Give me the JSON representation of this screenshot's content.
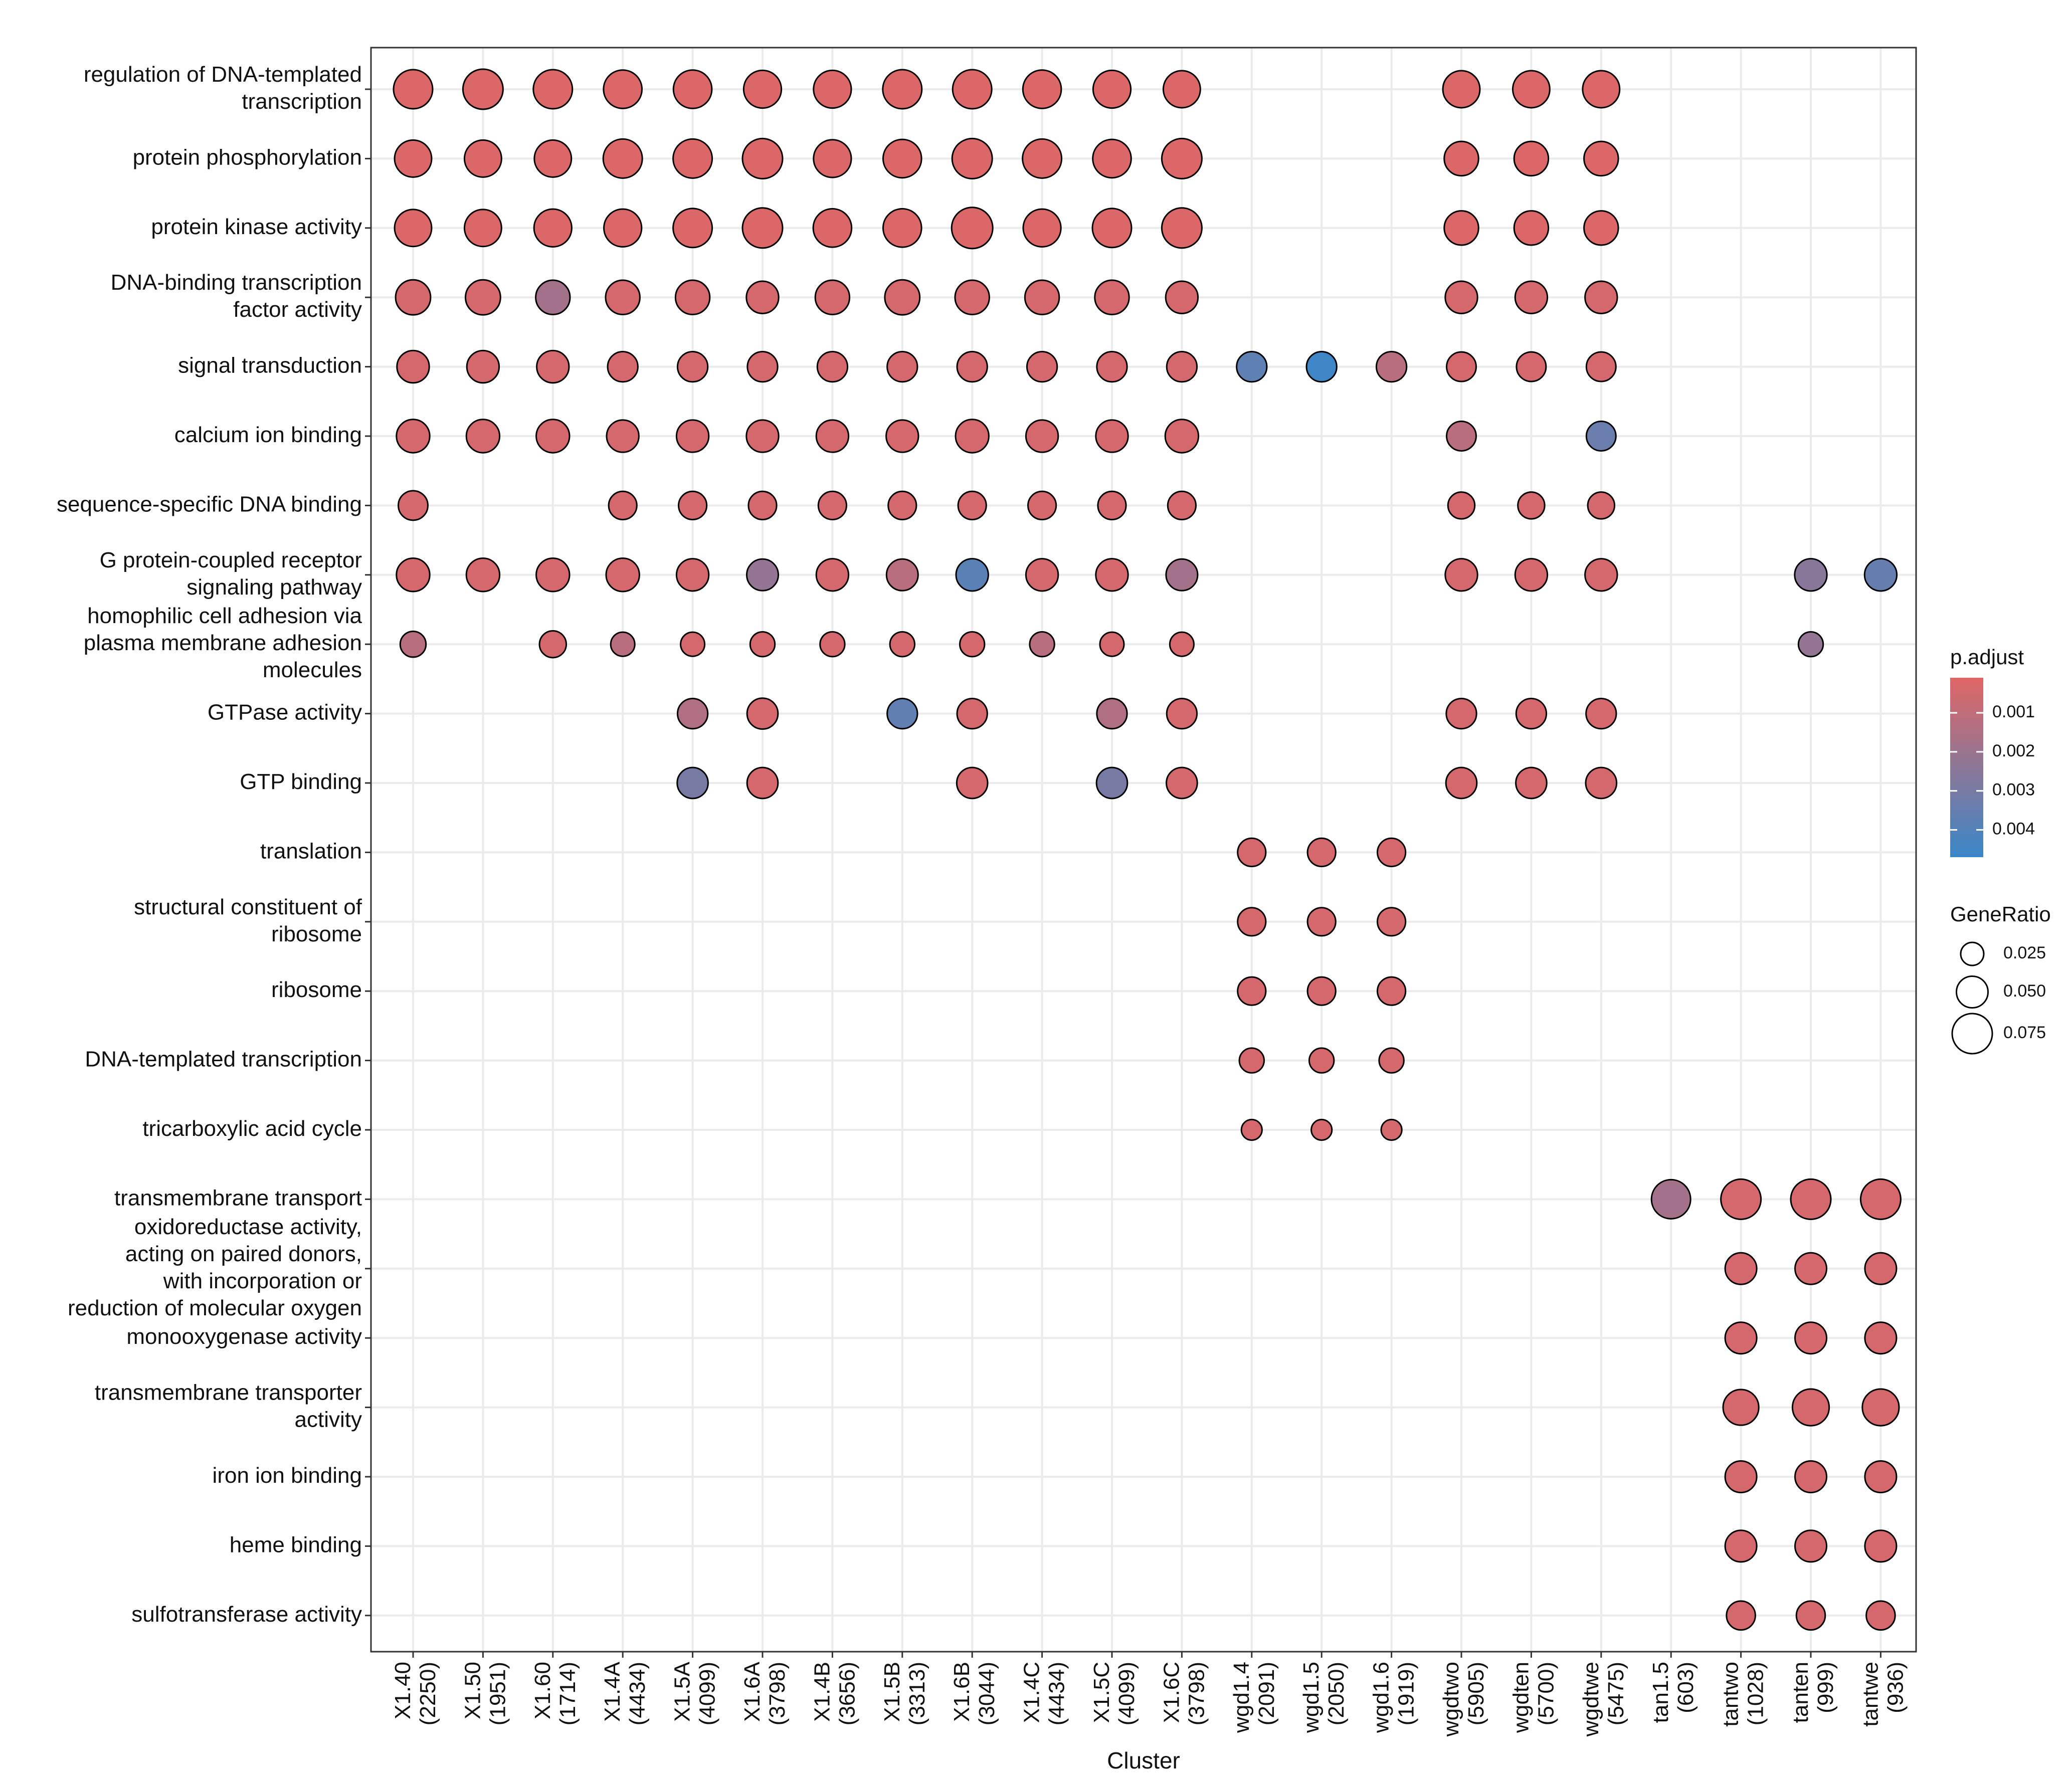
{
  "chart_data": {
    "type": "scatter",
    "xlabel": "Cluster",
    "ylabel": "",
    "x_categories": [
      [
        "X1.40",
        "(2250)"
      ],
      [
        "X1.50",
        "(1951)"
      ],
      [
        "X1.60",
        "(1714)"
      ],
      [
        "X1.4A",
        "(4434)"
      ],
      [
        "X1.5A",
        "(4099)"
      ],
      [
        "X1.6A",
        "(3798)"
      ],
      [
        "X1.4B",
        "(3656)"
      ],
      [
        "X1.5B",
        "(3313)"
      ],
      [
        "X1.6B",
        "(3044)"
      ],
      [
        "X1.4C",
        "(4434)"
      ],
      [
        "X1.5C",
        "(4099)"
      ],
      [
        "X1.6C",
        "(3798)"
      ],
      [
        "wgd1.4",
        "(2091)"
      ],
      [
        "wgd1.5",
        "(2050)"
      ],
      [
        "wgd1.6",
        "(1919)"
      ],
      [
        "wgdtwo",
        "(5905)"
      ],
      [
        "wgdten",
        "(5700)"
      ],
      [
        "wgdtwe",
        "(5475)"
      ],
      [
        "tan1.5",
        "(603)"
      ],
      [
        "tantwo",
        "(1028)"
      ],
      [
        "tanten",
        "(999)"
      ],
      [
        "tantwe",
        "(936)"
      ]
    ],
    "y_categories": [
      [
        "regulation of DNA-templated",
        "transcription"
      ],
      [
        "protein phosphorylation"
      ],
      [
        "protein kinase activity"
      ],
      [
        "DNA-binding transcription",
        "factor activity"
      ],
      [
        "signal transduction"
      ],
      [
        "calcium ion binding"
      ],
      [
        "sequence-specific DNA binding"
      ],
      [
        "G protein-coupled receptor",
        "signaling pathway"
      ],
      [
        "homophilic cell adhesion via",
        "plasma membrane adhesion",
        "molecules"
      ],
      [
        "GTPase activity"
      ],
      [
        "GTP binding"
      ],
      [
        "translation"
      ],
      [
        "structural constituent of",
        "ribosome"
      ],
      [
        "ribosome"
      ],
      [
        "DNA-templated transcription"
      ],
      [
        "tricarboxylic acid cycle"
      ],
      [
        "transmembrane transport"
      ],
      [
        "oxidoreductase activity,",
        "acting on paired donors,",
        "with incorporation or",
        "reduction of molecular oxygen"
      ],
      [
        "monooxygenase activity"
      ],
      [
        "transmembrane transporter",
        "activity"
      ],
      [
        "iron ion binding"
      ],
      [
        "heme binding"
      ],
      [
        "sulfotransferase activity"
      ]
    ],
    "size_legend": {
      "title": "GeneRatio",
      "breaks": [
        0.025,
        0.05,
        0.075
      ],
      "labels": [
        "0.025",
        "0.050",
        "0.075"
      ]
    },
    "color_legend": {
      "title": "p.adjust",
      "labels": [
        "0.001",
        "0.002",
        "0.003",
        "0.004"
      ],
      "values": [
        0.001,
        0.002,
        0.003,
        0.004
      ],
      "range": [
        0.0001,
        0.0047
      ],
      "low_color": "#e06666",
      "high_color": "#3a87c8"
    },
    "grid": true,
    "legend_placement": "right",
    "point_fields": [
      "x",
      "y",
      "gene_ratio",
      "p_adjust"
    ],
    "points": [
      [
        0,
        0,
        0.072,
        0.0002
      ],
      [
        1,
        0,
        0.075,
        0.0002
      ],
      [
        2,
        0,
        0.072,
        0.0002
      ],
      [
        3,
        0,
        0.07,
        0.0002
      ],
      [
        4,
        0,
        0.07,
        0.0002
      ],
      [
        5,
        0,
        0.068,
        0.0002
      ],
      [
        6,
        0,
        0.068,
        0.0002
      ],
      [
        7,
        0,
        0.072,
        0.0002
      ],
      [
        8,
        0,
        0.072,
        0.0002
      ],
      [
        9,
        0,
        0.07,
        0.0002
      ],
      [
        10,
        0,
        0.068,
        0.0002
      ],
      [
        11,
        0,
        0.066,
        0.0002
      ],
      [
        15,
        0,
        0.066,
        0.0002
      ],
      [
        16,
        0,
        0.066,
        0.0002
      ],
      [
        17,
        0,
        0.066,
        0.0002
      ],
      [
        0,
        1,
        0.066,
        0.0002
      ],
      [
        1,
        1,
        0.066,
        0.0002
      ],
      [
        2,
        1,
        0.066,
        0.0002
      ],
      [
        3,
        1,
        0.072,
        0.0002
      ],
      [
        4,
        1,
        0.072,
        0.0002
      ],
      [
        5,
        1,
        0.075,
        0.0002
      ],
      [
        6,
        1,
        0.068,
        0.0002
      ],
      [
        7,
        1,
        0.07,
        0.0002
      ],
      [
        8,
        1,
        0.075,
        0.0002
      ],
      [
        9,
        1,
        0.072,
        0.0002
      ],
      [
        10,
        1,
        0.07,
        0.0002
      ],
      [
        11,
        1,
        0.075,
        0.0002
      ],
      [
        15,
        1,
        0.058,
        0.0002
      ],
      [
        16,
        1,
        0.058,
        0.0002
      ],
      [
        17,
        1,
        0.058,
        0.0002
      ],
      [
        0,
        2,
        0.066,
        0.0002
      ],
      [
        1,
        2,
        0.066,
        0.0002
      ],
      [
        2,
        2,
        0.068,
        0.0002
      ],
      [
        3,
        2,
        0.068,
        0.0002
      ],
      [
        4,
        2,
        0.072,
        0.0002
      ],
      [
        5,
        2,
        0.075,
        0.0002
      ],
      [
        6,
        2,
        0.07,
        0.0002
      ],
      [
        7,
        2,
        0.07,
        0.0002
      ],
      [
        8,
        2,
        0.078,
        0.0002
      ],
      [
        9,
        2,
        0.068,
        0.0002
      ],
      [
        10,
        2,
        0.072,
        0.0002
      ],
      [
        11,
        2,
        0.075,
        0.0002
      ],
      [
        15,
        2,
        0.058,
        0.0002
      ],
      [
        16,
        2,
        0.058,
        0.0002
      ],
      [
        17,
        2,
        0.058,
        0.0002
      ],
      [
        0,
        3,
        0.06,
        0.0004
      ],
      [
        1,
        3,
        0.06,
        0.0004
      ],
      [
        2,
        3,
        0.058,
        0.0018
      ],
      [
        3,
        3,
        0.058,
        0.0004
      ],
      [
        4,
        3,
        0.058,
        0.0004
      ],
      [
        5,
        3,
        0.052,
        0.0004
      ],
      [
        6,
        3,
        0.058,
        0.0004
      ],
      [
        7,
        3,
        0.06,
        0.0004
      ],
      [
        8,
        3,
        0.058,
        0.0004
      ],
      [
        9,
        3,
        0.058,
        0.0004
      ],
      [
        10,
        3,
        0.058,
        0.0004
      ],
      [
        11,
        3,
        0.052,
        0.0004
      ],
      [
        15,
        3,
        0.052,
        0.0004
      ],
      [
        16,
        3,
        0.052,
        0.0004
      ],
      [
        17,
        3,
        0.052,
        0.0004
      ],
      [
        0,
        4,
        0.052,
        0.0004
      ],
      [
        1,
        4,
        0.052,
        0.0004
      ],
      [
        2,
        4,
        0.052,
        0.0004
      ],
      [
        3,
        4,
        0.046,
        0.0004
      ],
      [
        4,
        4,
        0.046,
        0.0004
      ],
      [
        5,
        4,
        0.046,
        0.0004
      ],
      [
        6,
        4,
        0.046,
        0.0004
      ],
      [
        7,
        4,
        0.046,
        0.0004
      ],
      [
        8,
        4,
        0.046,
        0.0004
      ],
      [
        9,
        4,
        0.046,
        0.0004
      ],
      [
        10,
        4,
        0.046,
        0.0004
      ],
      [
        11,
        4,
        0.046,
        0.0004
      ],
      [
        12,
        4,
        0.046,
        0.0037
      ],
      [
        13,
        4,
        0.046,
        0.0046
      ],
      [
        14,
        4,
        0.046,
        0.0012
      ],
      [
        15,
        4,
        0.044,
        0.0004
      ],
      [
        16,
        4,
        0.044,
        0.0004
      ],
      [
        17,
        4,
        0.044,
        0.0004
      ],
      [
        0,
        5,
        0.055,
        0.0004
      ],
      [
        1,
        5,
        0.055,
        0.0004
      ],
      [
        2,
        5,
        0.055,
        0.0004
      ],
      [
        3,
        5,
        0.052,
        0.0004
      ],
      [
        4,
        5,
        0.052,
        0.0004
      ],
      [
        5,
        5,
        0.052,
        0.0004
      ],
      [
        6,
        5,
        0.052,
        0.0004
      ],
      [
        7,
        5,
        0.052,
        0.0004
      ],
      [
        8,
        5,
        0.055,
        0.0004
      ],
      [
        9,
        5,
        0.052,
        0.0004
      ],
      [
        10,
        5,
        0.052,
        0.0004
      ],
      [
        11,
        5,
        0.055,
        0.0004
      ],
      [
        15,
        5,
        0.044,
        0.0012
      ],
      [
        17,
        5,
        0.044,
        0.0034
      ],
      [
        0,
        6,
        0.044,
        0.0004
      ],
      [
        3,
        6,
        0.04,
        0.0004
      ],
      [
        4,
        6,
        0.04,
        0.0004
      ],
      [
        5,
        6,
        0.04,
        0.0004
      ],
      [
        6,
        6,
        0.04,
        0.0004
      ],
      [
        7,
        6,
        0.04,
        0.0004
      ],
      [
        8,
        6,
        0.04,
        0.0004
      ],
      [
        9,
        6,
        0.04,
        0.0004
      ],
      [
        10,
        6,
        0.04,
        0.0004
      ],
      [
        11,
        6,
        0.04,
        0.0004
      ],
      [
        15,
        6,
        0.036,
        0.0004
      ],
      [
        16,
        6,
        0.036,
        0.0004
      ],
      [
        17,
        6,
        0.036,
        0.0004
      ],
      [
        0,
        7,
        0.055,
        0.0004
      ],
      [
        1,
        7,
        0.055,
        0.0004
      ],
      [
        2,
        7,
        0.055,
        0.0004
      ],
      [
        3,
        7,
        0.055,
        0.0004
      ],
      [
        4,
        7,
        0.052,
        0.0004
      ],
      [
        5,
        7,
        0.05,
        0.0022
      ],
      [
        6,
        7,
        0.052,
        0.0004
      ],
      [
        7,
        7,
        0.05,
        0.0012
      ],
      [
        8,
        7,
        0.052,
        0.0038
      ],
      [
        9,
        7,
        0.052,
        0.0004
      ],
      [
        10,
        7,
        0.052,
        0.0004
      ],
      [
        11,
        7,
        0.05,
        0.0018
      ],
      [
        15,
        7,
        0.052,
        0.0004
      ],
      [
        16,
        7,
        0.052,
        0.0004
      ],
      [
        17,
        7,
        0.052,
        0.0004
      ],
      [
        20,
        7,
        0.052,
        0.0025
      ],
      [
        21,
        7,
        0.052,
        0.0035
      ],
      [
        0,
        8,
        0.033,
        0.0012
      ],
      [
        2,
        8,
        0.036,
        0.0004
      ],
      [
        3,
        8,
        0.028,
        0.0012
      ],
      [
        4,
        8,
        0.028,
        0.0004
      ],
      [
        5,
        8,
        0.03,
        0.0004
      ],
      [
        6,
        8,
        0.03,
        0.0004
      ],
      [
        7,
        8,
        0.03,
        0.0004
      ],
      [
        8,
        8,
        0.03,
        0.0004
      ],
      [
        9,
        8,
        0.03,
        0.0012
      ],
      [
        10,
        8,
        0.028,
        0.0004
      ],
      [
        11,
        8,
        0.028,
        0.0004
      ],
      [
        20,
        8,
        0.03,
        0.0022
      ],
      [
        4,
        9,
        0.046,
        0.0014
      ],
      [
        5,
        9,
        0.048,
        0.0004
      ],
      [
        7,
        9,
        0.046,
        0.0036
      ],
      [
        8,
        9,
        0.046,
        0.0004
      ],
      [
        10,
        9,
        0.046,
        0.0014
      ],
      [
        11,
        9,
        0.046,
        0.0004
      ],
      [
        15,
        9,
        0.046,
        0.0004
      ],
      [
        16,
        9,
        0.046,
        0.0004
      ],
      [
        17,
        9,
        0.046,
        0.0004
      ],
      [
        4,
        10,
        0.048,
        0.003
      ],
      [
        5,
        10,
        0.048,
        0.0004
      ],
      [
        8,
        10,
        0.048,
        0.0004
      ],
      [
        10,
        10,
        0.048,
        0.003
      ],
      [
        11,
        10,
        0.048,
        0.0004
      ],
      [
        15,
        10,
        0.048,
        0.0004
      ],
      [
        16,
        10,
        0.048,
        0.0004
      ],
      [
        17,
        10,
        0.048,
        0.0004
      ],
      [
        12,
        11,
        0.04,
        0.0004
      ],
      [
        13,
        11,
        0.04,
        0.0004
      ],
      [
        14,
        11,
        0.04,
        0.0004
      ],
      [
        12,
        12,
        0.04,
        0.0004
      ],
      [
        13,
        12,
        0.04,
        0.0004
      ],
      [
        14,
        12,
        0.04,
        0.0004
      ],
      [
        12,
        13,
        0.04,
        0.0004
      ],
      [
        13,
        13,
        0.04,
        0.0004
      ],
      [
        14,
        13,
        0.04,
        0.0004
      ],
      [
        12,
        14,
        0.03,
        0.0004
      ],
      [
        13,
        14,
        0.03,
        0.0004
      ],
      [
        14,
        14,
        0.03,
        0.0004
      ],
      [
        12,
        15,
        0.018,
        0.0004
      ],
      [
        13,
        15,
        0.018,
        0.0004
      ],
      [
        14,
        15,
        0.018,
        0.0004
      ],
      [
        18,
        16,
        0.072,
        0.0018
      ],
      [
        19,
        16,
        0.075,
        0.0004
      ],
      [
        20,
        16,
        0.075,
        0.0004
      ],
      [
        21,
        16,
        0.075,
        0.0004
      ],
      [
        19,
        17,
        0.05,
        0.0004
      ],
      [
        20,
        17,
        0.05,
        0.0004
      ],
      [
        21,
        17,
        0.05,
        0.0004
      ],
      [
        19,
        18,
        0.05,
        0.0004
      ],
      [
        20,
        18,
        0.05,
        0.0004
      ],
      [
        21,
        18,
        0.05,
        0.0004
      ],
      [
        19,
        19,
        0.062,
        0.0004
      ],
      [
        20,
        19,
        0.065,
        0.0004
      ],
      [
        21,
        19,
        0.065,
        0.0004
      ],
      [
        19,
        20,
        0.05,
        0.0004
      ],
      [
        20,
        20,
        0.05,
        0.0004
      ],
      [
        21,
        20,
        0.05,
        0.0004
      ],
      [
        19,
        21,
        0.05,
        0.0004
      ],
      [
        20,
        21,
        0.05,
        0.0004
      ],
      [
        21,
        21,
        0.05,
        0.0004
      ],
      [
        19,
        22,
        0.042,
        0.0004
      ],
      [
        20,
        22,
        0.042,
        0.0004
      ],
      [
        21,
        22,
        0.042,
        0.0004
      ]
    ]
  }
}
